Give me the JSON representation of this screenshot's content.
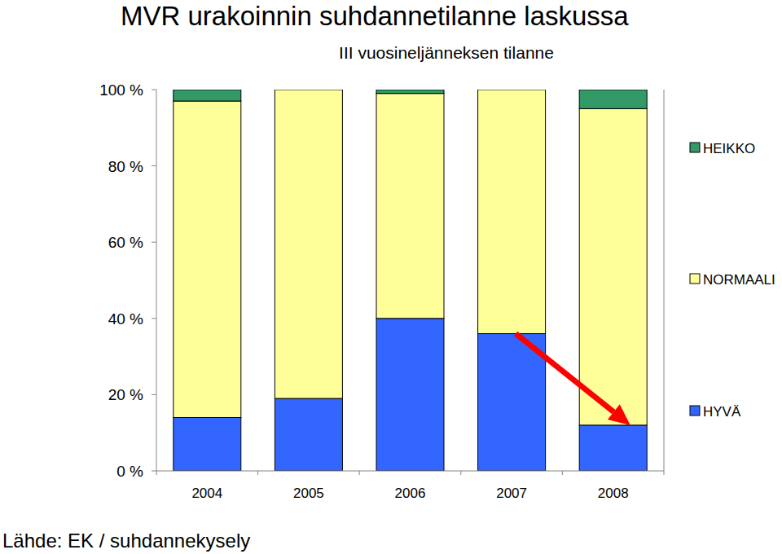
{
  "chart_data": {
    "type": "bar",
    "stacked": true,
    "title": "MVR urakoinnin suhdannetilanne laskussa",
    "subtitle": "III vuosineljänneksen tilanne",
    "source": "Lähde: EK / suhdannekysely",
    "categories": [
      "2004",
      "2005",
      "2006",
      "2007",
      "2008"
    ],
    "series": [
      {
        "name": "HYVÄ",
        "color": "#3366ff",
        "values": [
          14,
          19,
          40,
          36,
          12
        ]
      },
      {
        "name": "NORMAALI",
        "color": "#ffff99",
        "values": [
          83,
          81,
          59,
          64,
          83
        ]
      },
      {
        "name": "HEIKKO",
        "color": "#339966",
        "values": [
          3,
          0,
          1,
          0,
          5
        ]
      }
    ],
    "ylim": [
      0,
      100
    ],
    "yticks": [
      {
        "value": 0,
        "label": "0 %"
      },
      {
        "value": 20,
        "label": "20 %"
      },
      {
        "value": 40,
        "label": "40 %"
      },
      {
        "value": 60,
        "label": "60 %"
      },
      {
        "value": 80,
        "label": "80 %"
      },
      {
        "value": 100,
        "label": "100 %"
      }
    ],
    "grid": false,
    "legend": "right"
  }
}
